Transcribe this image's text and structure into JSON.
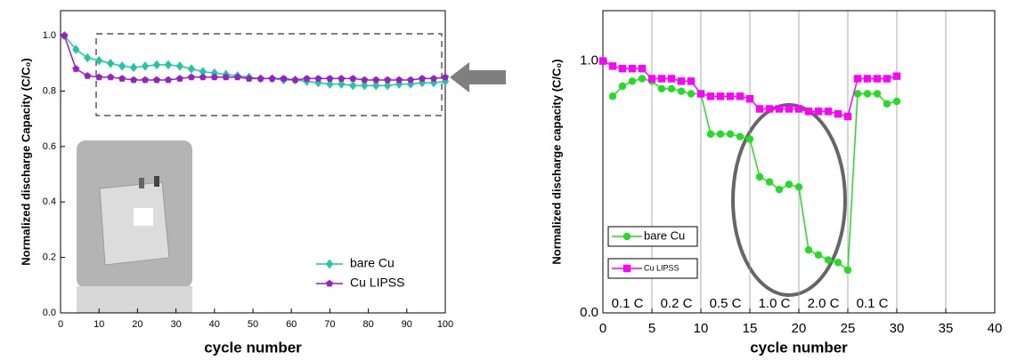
{
  "chart_data": [
    {
      "type": "line",
      "x_label": "cycle number",
      "y_label": "Normalized discharge Capacity (C/C₀)",
      "xlim": [
        0,
        100
      ],
      "ylim": [
        0,
        1.09
      ],
      "xticks": [
        0,
        10,
        20,
        30,
        40,
        50,
        60,
        70,
        80,
        90,
        100
      ],
      "yticks": [
        {
          "value": 0,
          "label": "0.0"
        },
        {
          "value": 0.2,
          "label": "0.2"
        },
        {
          "value": 0.4,
          "label": "0.4"
        },
        {
          "value": 0.6,
          "label": "0.6"
        },
        {
          "value": 0.8,
          "label": "0.8"
        },
        {
          "value": 1,
          "label": "1.0"
        }
      ],
      "legend": "lower right",
      "series": [
        {
          "name": "bare Cu",
          "color": "#1fc8a0",
          "marker": "diamond",
          "x": [
            1,
            4,
            7,
            10,
            13,
            16,
            19,
            22,
            25,
            28,
            31,
            34,
            37,
            40,
            43,
            46,
            49,
            52,
            55,
            58,
            61,
            64,
            67,
            70,
            73,
            76,
            79,
            82,
            85,
            88,
            91,
            94,
            97,
            100
          ],
          "values": [
            1.0,
            0.95,
            0.92,
            0.91,
            0.9,
            0.89,
            0.885,
            0.89,
            0.895,
            0.895,
            0.89,
            0.88,
            0.87,
            0.865,
            0.86,
            0.855,
            0.85,
            0.845,
            0.845,
            0.84,
            0.84,
            0.835,
            0.83,
            0.825,
            0.825,
            0.82,
            0.82,
            0.82,
            0.82,
            0.825,
            0.825,
            0.83,
            0.83,
            0.835
          ]
        },
        {
          "name": "Cu LIPSS",
          "color": "#9a1fc8",
          "marker": "pentagon",
          "x": [
            1,
            4,
            7,
            10,
            13,
            16,
            19,
            22,
            25,
            28,
            31,
            34,
            37,
            40,
            43,
            46,
            49,
            52,
            55,
            58,
            61,
            64,
            67,
            70,
            73,
            76,
            79,
            82,
            85,
            88,
            91,
            94,
            97,
            100
          ],
          "values": [
            1.0,
            0.88,
            0.855,
            0.85,
            0.85,
            0.845,
            0.84,
            0.84,
            0.84,
            0.84,
            0.845,
            0.85,
            0.85,
            0.85,
            0.85,
            0.85,
            0.845,
            0.845,
            0.845,
            0.845,
            0.84,
            0.845,
            0.845,
            0.845,
            0.845,
            0.845,
            0.84,
            0.84,
            0.84,
            0.84,
            0.84,
            0.845,
            0.845,
            0.85
          ]
        }
      ]
    },
    {
      "type": "line",
      "x_label": "cycle number",
      "y_label": "Normalized discharge capacity (C/C₀)",
      "xlim": [
        0,
        40
      ],
      "ylim": [
        0,
        1.2
      ],
      "xticks": [
        0,
        5,
        10,
        15,
        20,
        25,
        30,
        35,
        40
      ],
      "yticks": [
        {
          "value": 0,
          "label": "0.0"
        },
        {
          "value": 1,
          "label": "1.0"
        }
      ],
      "grid_x": true,
      "legend": "center left",
      "annotations": [
        "0.1 C",
        "0.2 C",
        "0.5 C",
        "1.0 C",
        "2.0 C",
        "0.1 C"
      ],
      "series": [
        {
          "name": "bare Cu",
          "color": "#22dd22",
          "marker": "circle",
          "x": [
            1,
            2,
            3,
            4,
            5,
            6,
            7,
            8,
            9,
            10,
            11,
            12,
            13,
            14,
            15,
            16,
            17,
            18,
            19,
            20,
            21,
            22,
            23,
            24,
            25,
            26,
            27,
            28,
            29,
            30
          ],
          "values": [
            0.86,
            0.9,
            0.92,
            0.93,
            0.92,
            0.89,
            0.89,
            0.88,
            0.87,
            0.87,
            0.71,
            0.71,
            0.71,
            0.7,
            0.69,
            0.54,
            0.52,
            0.49,
            0.51,
            0.5,
            0.25,
            0.23,
            0.21,
            0.2,
            0.17,
            0.87,
            0.87,
            0.87,
            0.83,
            0.84
          ]
        },
        {
          "name": "Cu LIPSS",
          "color": "#ff00ff",
          "marker": "square",
          "x": [
            0,
            1,
            2,
            3,
            4,
            5,
            6,
            7,
            8,
            9,
            10,
            11,
            12,
            13,
            14,
            15,
            16,
            17,
            18,
            19,
            20,
            21,
            22,
            23,
            24,
            25,
            26,
            27,
            28,
            29,
            30
          ],
          "values": [
            1.0,
            0.98,
            0.97,
            0.97,
            0.97,
            0.93,
            0.93,
            0.93,
            0.92,
            0.92,
            0.87,
            0.86,
            0.86,
            0.86,
            0.86,
            0.85,
            0.81,
            0.81,
            0.81,
            0.81,
            0.81,
            0.8,
            0.8,
            0.8,
            0.79,
            0.78,
            0.93,
            0.93,
            0.93,
            0.93,
            0.94
          ]
        }
      ]
    }
  ]
}
